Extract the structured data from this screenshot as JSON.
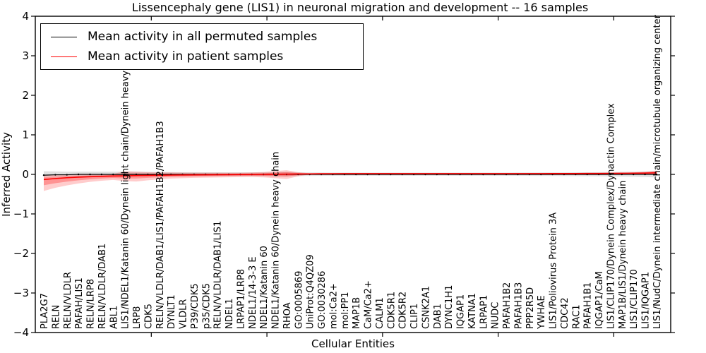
{
  "figure": {
    "background": "#ffffff"
  },
  "legend": {
    "position": "upper left",
    "items": [
      {
        "label": "Mean activity in all permuted samples",
        "color": "#000000"
      },
      {
        "label": "Mean activity in patient samples",
        "color": "#ff0000"
      }
    ]
  },
  "chart_data": {
    "type": "line",
    "title": "Lissencephaly gene (LIS1) in neuronal migration and development -- 16 samples",
    "xlabel": "Cellular Entities",
    "ylabel": "Inferred Activity",
    "ylim": [
      -4,
      4
    ],
    "grid": false,
    "legend_position": "upper left",
    "yticks": [
      {
        "value": 4,
        "label": "4"
      },
      {
        "value": 3,
        "label": "3"
      },
      {
        "value": 2,
        "label": "2"
      },
      {
        "value": 1,
        "label": "1"
      },
      {
        "value": 0,
        "label": "0"
      },
      {
        "value": -1,
        "label": "−1"
      },
      {
        "value": -2,
        "label": "−2"
      },
      {
        "value": -3,
        "label": "−3"
      },
      {
        "value": -4,
        "label": "−4"
      }
    ],
    "x_major_ticks": [
      10,
      20,
      30,
      40,
      50
    ],
    "categories": [
      "PLA2G7",
      "RELN",
      "RELN/VLDLR",
      "PAFAH/LIS1",
      "RELN/LRP8",
      "RELN/VLDLR/DAB1",
      "ABL1",
      "LIS1/NDEL1/Katanin 60/Dynein light chain/Dynein heavy chain",
      "LRP8",
      "CDK5",
      "RELN/VLDLR/DAB1/LIS1/PAFAH1B2/PAFAH1B3",
      "DYNLT1",
      "VLDLR",
      "P39/CDK5",
      "p35/CDK5",
      "RELN/VLDLR/DAB1/LIS1",
      "NDEL1",
      "LRPAP1/LRP8",
      "NDEL1/14-3-3 E",
      "NDEL1/Katanin 60",
      "NDEL1/Katanin 60/Dynein heavy chain",
      "RHOA",
      "GO:0005869",
      "UniProt:Q4QZ09",
      "GO:0030286",
      "mol:Ca2+",
      "mol:PP1",
      "MAP1B",
      "CaM/Ca2+",
      "CALM1",
      "CDK5R1",
      "CDK5R2",
      "CLIP1",
      "CSNK2A1",
      "DAB1",
      "DYNC1H1",
      "IQGAP1",
      "KATNA1",
      "LRPAP1",
      "NUDC",
      "PAFAH1B2",
      "PAFAH1B3",
      "PPP2R5D",
      "YWHAE",
      "LIS1/Poliovirus Protein 3A",
      "CDC42",
      "RAC1",
      "PAFAH1B1",
      "IQGAP1/CaM",
      "LIS1/CLIP170/Dynein Complex/Dynactin Complex",
      "MAP1B/LIS1/Dynein heavy chain",
      "LIS1/CLIP170",
      "LIS1/IQGAP1",
      "LIS1/NudC/Dynein intermediate chain/microtubule organizing center"
    ],
    "series": [
      {
        "name": "Mean activity in all permuted samples",
        "color": "#000000",
        "marker": "dot",
        "values": [
          -0.02,
          -0.01,
          -0.01,
          0,
          0,
          0,
          0,
          0,
          0,
          0,
          0,
          0,
          0,
          0,
          0,
          0,
          0,
          0,
          0,
          0,
          0,
          0,
          0,
          0,
          0,
          0,
          0,
          0,
          0,
          0,
          0,
          0,
          0,
          0,
          0,
          0,
          0,
          0,
          0,
          0,
          0,
          0,
          0,
          0,
          0,
          0,
          0,
          0,
          0,
          0,
          0,
          0,
          0,
          0
        ],
        "band": {
          "color": "#000000",
          "opacity": 0.12,
          "upper": [
            0.08,
            0.075,
            0.07,
            0.07,
            0.07,
            0.068,
            0.066,
            0.072,
            0.066,
            0.062,
            0.06,
            0.058,
            0.056,
            0.055,
            0.054,
            0.053,
            0.052,
            0.052,
            0.052,
            0.054,
            0.058,
            0.062,
            0.052,
            0.048,
            0.046,
            0.045,
            0.045,
            0.044,
            0.044,
            0.044,
            0.044,
            0.044,
            0.044,
            0.044,
            0.044,
            0.044,
            0.044,
            0.044,
            0.044,
            0.045,
            0.045,
            0.046,
            0.047,
            0.048,
            0.049,
            0.05,
            0.052,
            0.054,
            0.056,
            0.06,
            0.064,
            0.068,
            0.075,
            0.085
          ],
          "lower": [
            -0.06,
            -0.058,
            -0.055,
            -0.053,
            -0.052,
            -0.051,
            -0.05,
            -0.055,
            -0.05,
            -0.048,
            -0.046,
            -0.045,
            -0.044,
            -0.043,
            -0.042,
            -0.042,
            -0.041,
            -0.041,
            -0.041,
            -0.043,
            -0.046,
            -0.05,
            -0.042,
            -0.04,
            -0.038,
            -0.038,
            -0.037,
            -0.037,
            -0.036,
            -0.036,
            -0.036,
            -0.036,
            -0.036,
            -0.036,
            -0.036,
            -0.036,
            -0.036,
            -0.036,
            -0.036,
            -0.037,
            -0.037,
            -0.038,
            -0.039,
            -0.04,
            -0.041,
            -0.042,
            -0.044,
            -0.046,
            -0.048,
            -0.052,
            -0.056,
            -0.06,
            -0.068,
            -0.078
          ]
        }
      },
      {
        "name": "Mean activity in patient samples",
        "color": "#ff0000",
        "marker": "none",
        "values": [
          -0.13,
          -0.105,
          -0.085,
          -0.07,
          -0.06,
          -0.05,
          -0.042,
          -0.036,
          -0.03,
          -0.026,
          -0.022,
          -0.018,
          -0.015,
          -0.012,
          -0.01,
          -0.008,
          -0.006,
          -0.004,
          -0.002,
          0,
          0.003,
          0.006,
          0.01,
          0.013,
          0.016,
          0.018,
          0.02,
          0.02,
          0.02,
          0.02,
          0.02,
          0.02,
          0.02,
          0.02,
          0.02,
          0.02,
          0.02,
          0.02,
          0.02,
          0.02,
          0.02,
          0.02,
          0.02,
          0.02,
          0.021,
          0.021,
          0.022,
          0.023,
          0.024,
          0.026,
          0.028,
          0.03,
          0.032,
          0.04
        ],
        "band": {
          "color": "#ff0000",
          "opacity": 0.2,
          "inner_scale": 0.5,
          "inner_opacity": 0.28,
          "upper": [
            -0.02,
            -0.02,
            -0.015,
            -0.008,
            0,
            0.006,
            0.012,
            0.08,
            0.07,
            0.055,
            0.05,
            0.048,
            0.045,
            0.043,
            0.042,
            0.042,
            0.042,
            0.043,
            0.048,
            0.06,
            0.085,
            0.105,
            0.055,
            0.027,
            0.025,
            0.025,
            0.025,
            0.025,
            0.025,
            0.025,
            0.025,
            0.025,
            0.025,
            0.025,
            0.025,
            0.025,
            0.025,
            0.025,
            0.025,
            0.025,
            0.026,
            0.027,
            0.028,
            0.029,
            0.03,
            0.031,
            0.032,
            0.033,
            0.035,
            0.038,
            0.042,
            0.05,
            0.065,
            0.095
          ],
          "lower": [
            -0.42,
            -0.34,
            -0.28,
            -0.23,
            -0.19,
            -0.16,
            -0.14,
            -0.17,
            -0.18,
            -0.15,
            -0.125,
            -0.105,
            -0.095,
            -0.088,
            -0.082,
            -0.078,
            -0.074,
            -0.07,
            -0.068,
            -0.075,
            -0.095,
            -0.115,
            -0.05,
            -0.003,
            0.008,
            0.011,
            0.014,
            0.015,
            0.015,
            0.015,
            0.015,
            0.015,
            0.015,
            0.015,
            0.015,
            0.015,
            0.015,
            0.015,
            0.015,
            0.015,
            0.015,
            0.015,
            0.015,
            0.015,
            0.015,
            0.015,
            0.015,
            0.016,
            0.016,
            0.017,
            0.017,
            0.015,
            0.008,
            -0.02
          ]
        }
      }
    ]
  }
}
